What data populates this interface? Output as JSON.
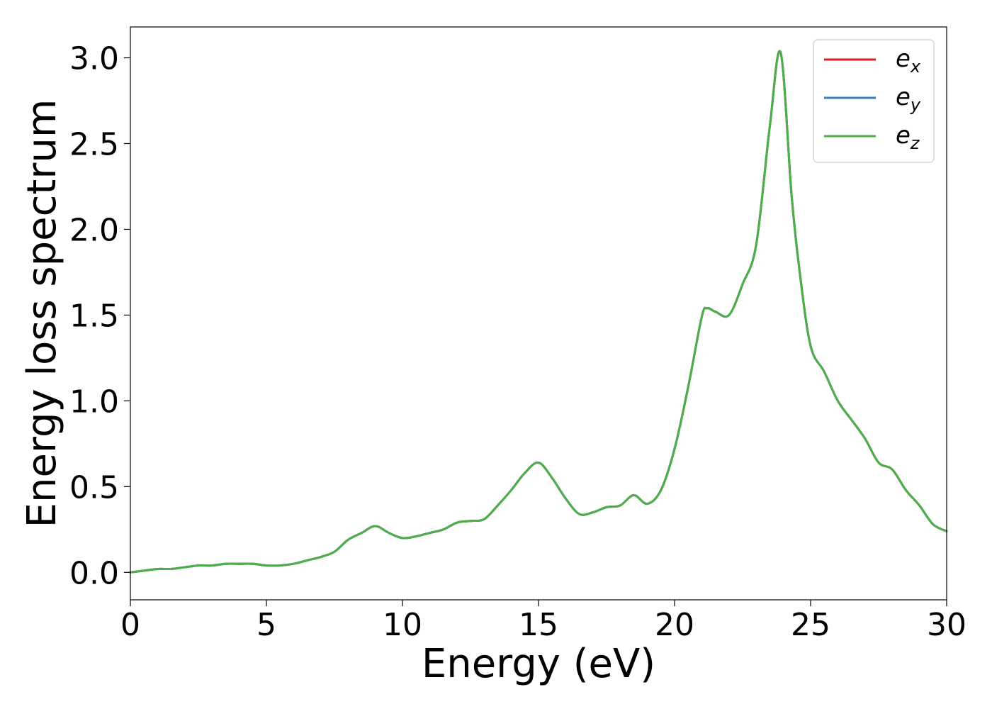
{
  "chart_data": {
    "type": "line",
    "xlabel": "Energy (eV)",
    "ylabel": "Energy loss spectrum",
    "xlim": [
      0,
      30
    ],
    "ylim": [
      -0.16,
      3.18
    ],
    "xticks": [
      0,
      5,
      10,
      15,
      20,
      25,
      30
    ],
    "xtick_labels": [
      "0",
      "5",
      "10",
      "15",
      "20",
      "25",
      "30"
    ],
    "yticks": [
      0.0,
      0.5,
      1.0,
      1.5,
      2.0,
      2.5,
      3.0
    ],
    "ytick_labels": [
      "0.0",
      "0.5",
      "1.0",
      "1.5",
      "2.0",
      "2.5",
      "3.0"
    ],
    "grid": false,
    "legend_position": "top-right",
    "x": [
      0,
      0.5,
      1,
      1.5,
      2,
      2.5,
      3,
      3.5,
      4,
      4.5,
      5,
      5.5,
      6,
      6.5,
      7,
      7.5,
      8,
      8.5,
      9,
      9.5,
      10,
      10.5,
      11,
      11.5,
      12,
      12.5,
      13,
      13.5,
      14,
      14.5,
      15,
      15.5,
      16,
      16.5,
      17,
      17.5,
      18,
      18.5,
      19,
      19.5,
      20,
      20.5,
      21,
      21.2,
      21.5,
      22,
      22.5,
      23,
      23.5,
      23.9,
      24.3,
      24.6,
      25,
      25.5,
      26,
      26.5,
      27,
      27.5,
      28,
      28.5,
      29,
      29.5,
      30
    ],
    "series": [
      {
        "name": "e_x",
        "legend_main": "e",
        "legend_sub": "x",
        "color": "#e41a1c",
        "values": [
          0.0,
          0.01,
          0.02,
          0.02,
          0.03,
          0.04,
          0.04,
          0.05,
          0.05,
          0.05,
          0.04,
          0.04,
          0.05,
          0.07,
          0.09,
          0.12,
          0.19,
          0.23,
          0.27,
          0.23,
          0.2,
          0.21,
          0.23,
          0.25,
          0.29,
          0.3,
          0.31,
          0.39,
          0.48,
          0.58,
          0.64,
          0.55,
          0.43,
          0.34,
          0.35,
          0.38,
          0.39,
          0.45,
          0.4,
          0.48,
          0.72,
          1.08,
          1.49,
          1.54,
          1.52,
          1.5,
          1.68,
          1.91,
          2.6,
          3.03,
          2.2,
          1.75,
          1.32,
          1.17,
          1.0,
          0.89,
          0.78,
          0.64,
          0.6,
          0.48,
          0.39,
          0.28,
          0.24
        ]
      },
      {
        "name": "e_y",
        "legend_main": "e",
        "legend_sub": "y",
        "color": "#377eb8",
        "values": [
          0.0,
          0.01,
          0.02,
          0.02,
          0.03,
          0.04,
          0.04,
          0.05,
          0.05,
          0.05,
          0.04,
          0.04,
          0.05,
          0.07,
          0.09,
          0.12,
          0.19,
          0.23,
          0.27,
          0.23,
          0.2,
          0.21,
          0.23,
          0.25,
          0.29,
          0.3,
          0.31,
          0.39,
          0.48,
          0.58,
          0.64,
          0.55,
          0.43,
          0.34,
          0.35,
          0.38,
          0.39,
          0.45,
          0.4,
          0.48,
          0.72,
          1.08,
          1.49,
          1.54,
          1.52,
          1.5,
          1.68,
          1.91,
          2.6,
          3.03,
          2.2,
          1.75,
          1.32,
          1.17,
          1.0,
          0.89,
          0.78,
          0.64,
          0.6,
          0.48,
          0.39,
          0.28,
          0.24
        ]
      },
      {
        "name": "e_z",
        "legend_main": "e",
        "legend_sub": "z",
        "color": "#4daf4a",
        "values": [
          0.0,
          0.01,
          0.02,
          0.02,
          0.03,
          0.04,
          0.04,
          0.05,
          0.05,
          0.05,
          0.04,
          0.04,
          0.05,
          0.07,
          0.09,
          0.12,
          0.19,
          0.23,
          0.27,
          0.23,
          0.2,
          0.21,
          0.23,
          0.25,
          0.29,
          0.3,
          0.31,
          0.39,
          0.48,
          0.58,
          0.64,
          0.55,
          0.43,
          0.34,
          0.35,
          0.38,
          0.39,
          0.45,
          0.4,
          0.48,
          0.72,
          1.08,
          1.49,
          1.54,
          1.52,
          1.5,
          1.68,
          1.91,
          2.6,
          3.03,
          2.2,
          1.75,
          1.32,
          1.17,
          1.0,
          0.89,
          0.78,
          0.64,
          0.6,
          0.48,
          0.39,
          0.28,
          0.24
        ]
      }
    ]
  }
}
